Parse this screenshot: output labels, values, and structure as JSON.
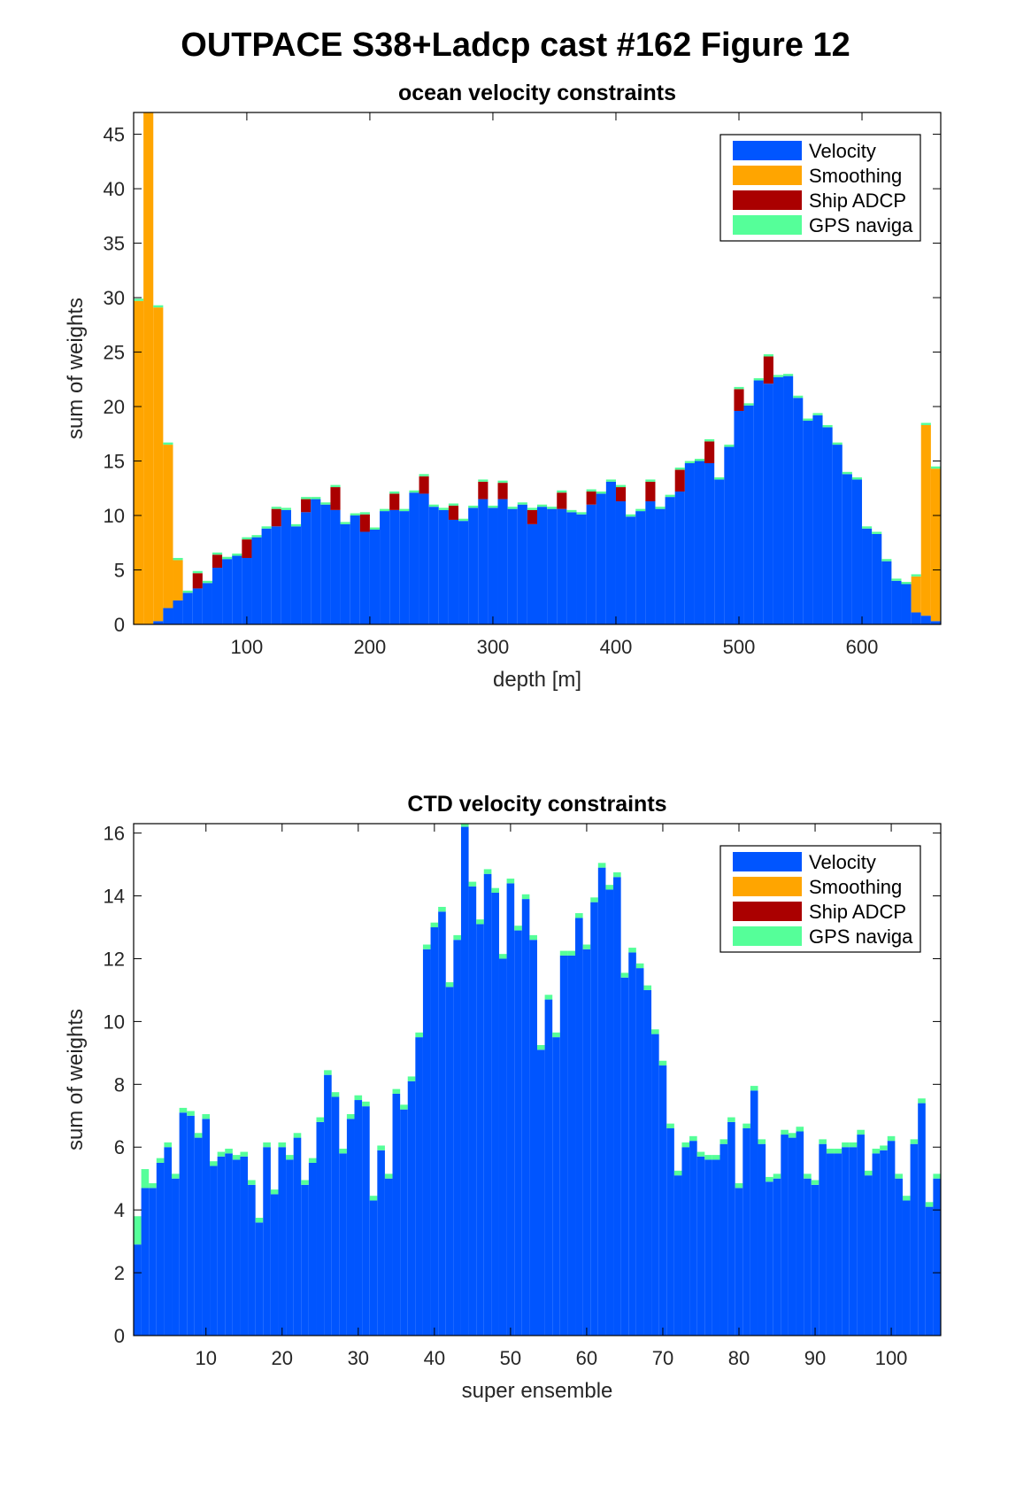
{
  "figure": {
    "title": "OUTPACE S38+Ladcp cast #162  Figure 12"
  },
  "colors": {
    "velocity": "#0055ff",
    "smoothing": "#ffa500",
    "ship_adcp": "#aa0000",
    "gps": "#55ff99"
  },
  "chart_data": [
    {
      "type": "bar",
      "stacked": true,
      "title": "ocean velocity constraints",
      "xlabel": "depth [m]",
      "ylabel": "sum of weights",
      "xlim": [
        8,
        664
      ],
      "ylim": [
        0,
        47
      ],
      "xticks": [
        100,
        200,
        300,
        400,
        500,
        600
      ],
      "yticks": [
        0,
        5,
        10,
        15,
        20,
        25,
        30,
        35,
        40,
        45
      ],
      "bin_width": 8,
      "legend": {
        "position": "top-right",
        "entries": [
          "Velocity",
          "Smoothing",
          "Ship ADCP",
          "GPS naviga"
        ]
      },
      "x": [
        12,
        20,
        28,
        36,
        44,
        52,
        60,
        68,
        76,
        84,
        92,
        100,
        108,
        116,
        124,
        132,
        140,
        148,
        156,
        164,
        172,
        180,
        188,
        196,
        204,
        212,
        220,
        228,
        236,
        244,
        252,
        260,
        268,
        276,
        284,
        292,
        300,
        308,
        316,
        324,
        332,
        340,
        348,
        356,
        364,
        372,
        380,
        388,
        396,
        404,
        412,
        420,
        428,
        436,
        444,
        452,
        460,
        468,
        476,
        484,
        492,
        500,
        508,
        516,
        524,
        532,
        540,
        548,
        556,
        564,
        572,
        580,
        588,
        596,
        604,
        612,
        620,
        628,
        636,
        644,
        652,
        660
      ],
      "series": [
        {
          "name": "Velocity",
          "values": [
            0,
            0,
            0.3,
            1.5,
            2.2,
            2.9,
            3.3,
            3.8,
            5.2,
            6.0,
            6.3,
            6.1,
            8.0,
            8.8,
            9.0,
            10.5,
            9.0,
            10.3,
            11.5,
            11.0,
            10.5,
            9.2,
            10.0,
            8.5,
            8.7,
            10.4,
            10.5,
            10.4,
            12.1,
            12.0,
            10.8,
            10.5,
            9.6,
            9.5,
            10.7,
            11.5,
            10.7,
            11.5,
            10.6,
            11.0,
            9.2,
            10.8,
            10.6,
            10.6,
            10.3,
            10.1,
            11.0,
            12.0,
            13.1,
            11.3,
            9.9,
            10.4,
            11.3,
            10.6,
            11.7,
            12.2,
            14.8,
            15.0,
            14.8,
            13.3,
            16.3,
            19.6,
            20.1,
            22.4,
            22.1,
            22.7,
            22.8,
            20.8,
            18.7,
            19.2,
            18.1,
            16.5,
            13.8,
            13.3,
            8.8,
            8.3,
            5.8,
            4.0,
            3.7,
            1.1,
            0.8,
            0.3
          ]
        },
        {
          "name": "Smoothing",
          "values": [
            29.7,
            47.2,
            28.8,
            15.0,
            3.7,
            0,
            0,
            0,
            0,
            0,
            0,
            0,
            0,
            0,
            0,
            0,
            0,
            0,
            0,
            0,
            0,
            0,
            0,
            0,
            0,
            0,
            0,
            0,
            0,
            0,
            0,
            0,
            0,
            0,
            0,
            0,
            0,
            0,
            0,
            0,
            0,
            0,
            0,
            0,
            0,
            0,
            0,
            0,
            0,
            0,
            0,
            0,
            0,
            0,
            0,
            0,
            0,
            0,
            0,
            0,
            0,
            0,
            0,
            0,
            0,
            0,
            0,
            0,
            0,
            0,
            0,
            0,
            0,
            0,
            0,
            0,
            0,
            0,
            0,
            3.3,
            17.5,
            14.0
          ]
        },
        {
          "name": "Ship ADCP",
          "values": [
            0,
            0,
            0,
            0,
            0,
            0,
            1.4,
            0,
            1.2,
            0,
            0,
            1.7,
            0,
            0,
            1.6,
            0,
            0,
            1.2,
            0,
            0,
            2.1,
            0,
            0,
            1.6,
            0,
            0,
            1.5,
            0,
            0,
            1.6,
            0,
            0,
            1.3,
            0,
            0,
            1.6,
            0,
            1.5,
            0,
            0,
            1.3,
            0,
            0,
            1.5,
            0,
            0,
            1.2,
            0,
            0,
            1.3,
            0,
            0,
            1.8,
            0,
            0,
            2.0,
            0,
            0,
            2.0,
            0,
            0,
            2.0,
            0,
            0,
            2.5,
            0,
            0,
            0,
            0,
            0,
            0,
            0,
            0,
            0,
            0,
            0,
            0,
            0,
            0,
            0,
            0,
            0
          ]
        },
        {
          "name": "GPS naviga",
          "values": [
            0.2,
            0.2,
            0.2,
            0.2,
            0.2,
            0.2,
            0.2,
            0.2,
            0.2,
            0.2,
            0.2,
            0.2,
            0.2,
            0.2,
            0.2,
            0.2,
            0.2,
            0.2,
            0.2,
            0.2,
            0.2,
            0.2,
            0.2,
            0.2,
            0.2,
            0.2,
            0.2,
            0.2,
            0.2,
            0.2,
            0.2,
            0.2,
            0.2,
            0.2,
            0.2,
            0.2,
            0.2,
            0.2,
            0.2,
            0.2,
            0.2,
            0.2,
            0.2,
            0.2,
            0.2,
            0.2,
            0.2,
            0.2,
            0.2,
            0.2,
            0.2,
            0.2,
            0.2,
            0.2,
            0.2,
            0.2,
            0.2,
            0.2,
            0.2,
            0.2,
            0.2,
            0.2,
            0.2,
            0.2,
            0.2,
            0.2,
            0.2,
            0.2,
            0.2,
            0.2,
            0.2,
            0.2,
            0.2,
            0.2,
            0.2,
            0.2,
            0.2,
            0.2,
            0.2,
            0.2,
            0.2,
            0.2
          ]
        }
      ]
    },
    {
      "type": "bar",
      "stacked": true,
      "title": "CTD velocity constraints",
      "xlabel": "super ensemble",
      "ylabel": "sum of weights",
      "xlim": [
        0.5,
        106.5
      ],
      "ylim": [
        0,
        16.3
      ],
      "xticks": [
        10,
        20,
        30,
        40,
        50,
        60,
        70,
        80,
        90,
        100
      ],
      "yticks": [
        0,
        2,
        4,
        6,
        8,
        10,
        12,
        14,
        16
      ],
      "bin_width": 1,
      "legend": {
        "position": "top-right",
        "entries": [
          "Velocity",
          "Smoothing",
          "Ship ADCP",
          "GPS naviga"
        ]
      },
      "x": [
        1,
        2,
        3,
        4,
        5,
        6,
        7,
        8,
        9,
        10,
        11,
        12,
        13,
        14,
        15,
        16,
        17,
        18,
        19,
        20,
        21,
        22,
        23,
        24,
        25,
        26,
        27,
        28,
        29,
        30,
        31,
        32,
        33,
        34,
        35,
        36,
        37,
        38,
        39,
        40,
        41,
        42,
        43,
        44,
        45,
        46,
        47,
        48,
        49,
        50,
        51,
        52,
        53,
        54,
        55,
        56,
        57,
        58,
        59,
        60,
        61,
        62,
        63,
        64,
        65,
        66,
        67,
        68,
        69,
        70,
        71,
        72,
        73,
        74,
        75,
        76,
        77,
        78,
        79,
        80,
        81,
        82,
        83,
        84,
        85,
        86,
        87,
        88,
        89,
        90,
        91,
        92,
        93,
        94,
        95,
        96,
        97,
        98,
        99,
        100,
        101,
        102,
        103,
        104,
        105,
        106
      ],
      "series": [
        {
          "name": "Velocity",
          "values": [
            2.9,
            4.7,
            4.7,
            5.5,
            6.0,
            5.0,
            7.1,
            7.0,
            6.3,
            6.9,
            5.4,
            5.7,
            5.8,
            5.6,
            5.7,
            4.8,
            3.6,
            6.0,
            4.5,
            6.0,
            5.6,
            6.3,
            4.8,
            5.5,
            6.8,
            8.3,
            7.6,
            5.8,
            6.9,
            7.5,
            7.3,
            4.3,
            5.9,
            5.0,
            7.7,
            7.2,
            8.1,
            9.5,
            12.3,
            13.0,
            13.5,
            11.1,
            12.6,
            16.2,
            14.3,
            13.1,
            14.7,
            14.1,
            12.0,
            14.4,
            12.9,
            13.9,
            12.6,
            9.1,
            10.7,
            9.5,
            12.1,
            12.1,
            13.3,
            12.3,
            13.8,
            14.9,
            14.2,
            14.6,
            11.4,
            12.2,
            11.7,
            11.0,
            9.6,
            8.6,
            6.6,
            5.1,
            6.0,
            6.2,
            5.7,
            5.6,
            5.6,
            6.1,
            6.8,
            4.7,
            6.6,
            7.8,
            6.1,
            4.9,
            5.0,
            6.4,
            6.3,
            6.5,
            5.0,
            4.8,
            6.1,
            5.8,
            5.8,
            6.0,
            6.0,
            6.4,
            5.1,
            5.8,
            5.9,
            6.2,
            5.0,
            4.3,
            6.1,
            7.4,
            4.1,
            5.0
          ]
        },
        {
          "name": "Smoothing",
          "values": [
            0,
            0,
            0,
            0,
            0,
            0,
            0,
            0,
            0,
            0,
            0,
            0,
            0,
            0,
            0,
            0,
            0,
            0,
            0,
            0,
            0,
            0,
            0,
            0,
            0,
            0,
            0,
            0,
            0,
            0,
            0,
            0,
            0,
            0,
            0,
            0,
            0,
            0,
            0,
            0,
            0,
            0,
            0,
            0,
            0,
            0,
            0,
            0,
            0,
            0,
            0,
            0,
            0,
            0,
            0,
            0,
            0,
            0,
            0,
            0,
            0,
            0,
            0,
            0,
            0,
            0,
            0,
            0,
            0,
            0,
            0,
            0,
            0,
            0,
            0,
            0,
            0,
            0,
            0,
            0,
            0,
            0,
            0,
            0,
            0,
            0,
            0,
            0,
            0,
            0,
            0,
            0,
            0,
            0,
            0,
            0,
            0,
            0,
            0,
            0,
            0,
            0,
            0,
            0,
            0,
            0
          ]
        },
        {
          "name": "Ship ADCP",
          "values": [
            0,
            0,
            0,
            0,
            0,
            0,
            0,
            0,
            0,
            0,
            0,
            0,
            0,
            0,
            0,
            0,
            0,
            0,
            0,
            0,
            0,
            0,
            0,
            0,
            0,
            0,
            0,
            0,
            0,
            0,
            0,
            0,
            0,
            0,
            0,
            0,
            0,
            0,
            0,
            0,
            0,
            0,
            0,
            0,
            0,
            0,
            0,
            0,
            0,
            0,
            0,
            0,
            0,
            0,
            0,
            0,
            0,
            0,
            0,
            0,
            0,
            0,
            0,
            0,
            0,
            0,
            0,
            0,
            0,
            0,
            0,
            0,
            0,
            0,
            0,
            0,
            0,
            0,
            0,
            0,
            0,
            0,
            0,
            0,
            0,
            0,
            0,
            0,
            0,
            0,
            0,
            0,
            0,
            0,
            0,
            0,
            0,
            0,
            0,
            0,
            0,
            0,
            0,
            0,
            0,
            0
          ]
        },
        {
          "name": "GPS naviga",
          "values": [
            0.9,
            0.6,
            0.15,
            0.15,
            0.15,
            0.15,
            0.15,
            0.15,
            0.15,
            0.15,
            0.15,
            0.15,
            0.15,
            0.15,
            0.15,
            0.15,
            0.15,
            0.15,
            0.15,
            0.15,
            0.15,
            0.15,
            0.15,
            0.15,
            0.15,
            0.15,
            0.15,
            0.15,
            0.15,
            0.15,
            0.15,
            0.15,
            0.15,
            0.15,
            0.15,
            0.15,
            0.15,
            0.15,
            0.15,
            0.15,
            0.15,
            0.15,
            0.15,
            0.15,
            0.15,
            0.15,
            0.15,
            0.15,
            0.15,
            0.15,
            0.15,
            0.15,
            0.15,
            0.15,
            0.15,
            0.15,
            0.15,
            0.15,
            0.15,
            0.15,
            0.15,
            0.15,
            0.15,
            0.15,
            0.15,
            0.15,
            0.15,
            0.15,
            0.15,
            0.15,
            0.15,
            0.15,
            0.15,
            0.15,
            0.15,
            0.15,
            0.15,
            0.15,
            0.15,
            0.15,
            0.15,
            0.15,
            0.15,
            0.15,
            0.15,
            0.15,
            0.15,
            0.15,
            0.15,
            0.15,
            0.15,
            0.15,
            0.15,
            0.15,
            0.15,
            0.15,
            0.15,
            0.15,
            0.15,
            0.15,
            0.15,
            0.15,
            0.15,
            0.15,
            0.15,
            0.15
          ]
        }
      ]
    }
  ]
}
